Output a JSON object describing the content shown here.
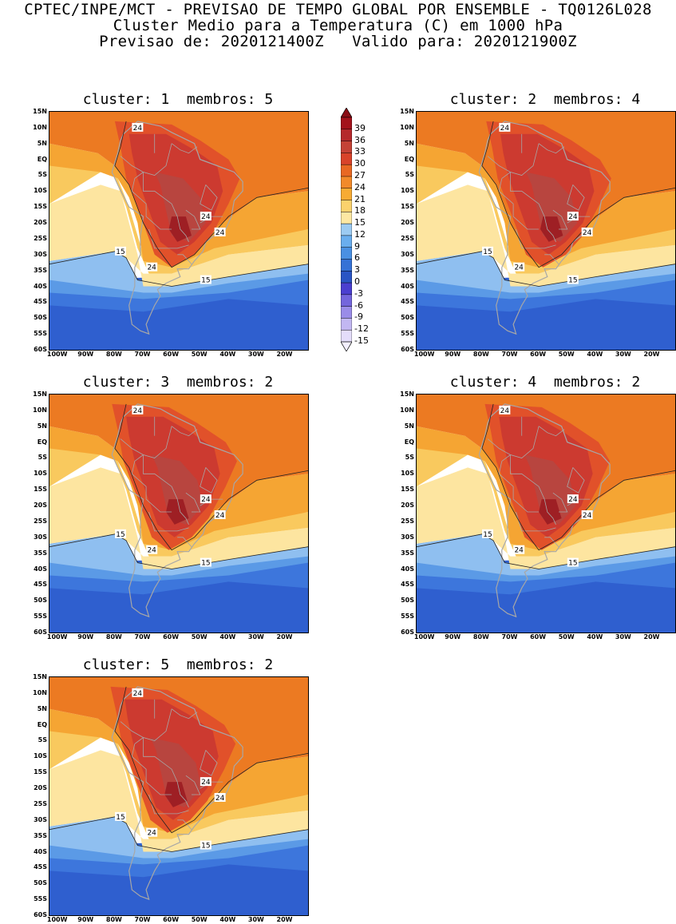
{
  "header": {
    "line1": "CPTEC/INPE/MCT - PREVISAO DE TEMPO GLOBAL POR ENSEMBLE - TQ0126L028",
    "line2": "Cluster Medio para a Temperatura (C) em 1000 hPa",
    "line3": "Previsao de: 2020121400Z   Valido para: 2020121900Z"
  },
  "panels": [
    {
      "title": "cluster: 1  membros: 5"
    },
    {
      "title": "cluster: 2  membros: 4"
    },
    {
      "title": "cluster: 3  membros: 2"
    },
    {
      "title": "cluster: 4  membros: 2"
    },
    {
      "title": "cluster: 5  membros: 2"
    }
  ],
  "axes": {
    "lat_labels": [
      "15N",
      "10N",
      "5N",
      "EQ",
      "5S",
      "10S",
      "15S",
      "20S",
      "25S",
      "30S",
      "35S",
      "40S",
      "45S",
      "50S",
      "55S",
      "60S"
    ],
    "lon_labels": [
      "100W",
      "90W",
      "80W",
      "70W",
      "60W",
      "50W",
      "40W",
      "30W",
      "20W"
    ]
  },
  "contour_labels": {
    "c24": "24",
    "c15": "15"
  },
  "colorbar": {
    "labels": [
      "39",
      "36",
      "33",
      "30",
      "27",
      "24",
      "21",
      "18",
      "15",
      "12",
      "9",
      "6",
      "3",
      "0",
      "-3",
      "-6",
      "-9",
      "-12",
      "-15"
    ],
    "colors": [
      "#a3131c",
      "#b5292c",
      "#c44236",
      "#d8432a",
      "#e86823",
      "#f28a2a",
      "#f7ab33",
      "#fbd26d",
      "#fde8a3",
      "#9ccbf2",
      "#6aaeee",
      "#4a90e2",
      "#3572d6",
      "#2a55c4",
      "#4b3fcf",
      "#7466dc",
      "#9a8ce8",
      "#c2b7f2",
      "#e4ddfa"
    ]
  }
}
